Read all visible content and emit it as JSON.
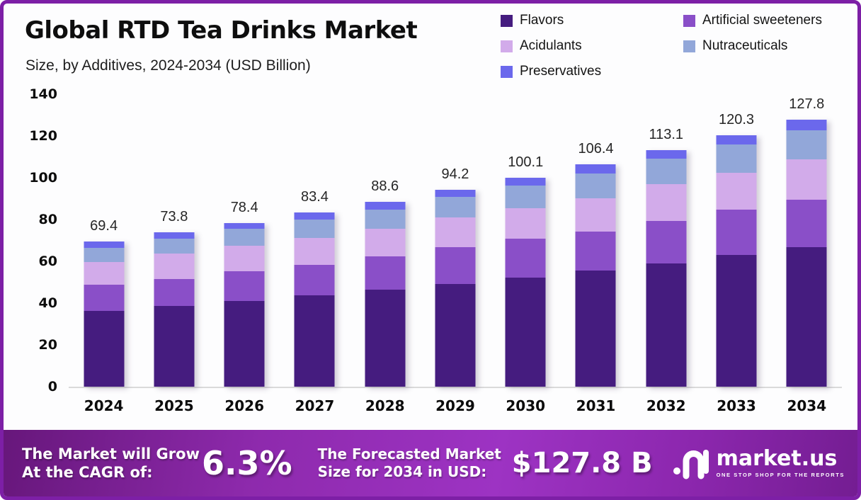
{
  "header": {
    "title": "Global RTD Tea Drinks Market",
    "subtitle": "Size, by Additives, 2024-2034 (USD Billion)"
  },
  "chart_data": {
    "type": "bar",
    "stacked": true,
    "title": "Global RTD Tea Drinks Market Size, by Additives, 2024-2034 (USD Billion)",
    "categories": [
      "2024",
      "2025",
      "2026",
      "2027",
      "2028",
      "2029",
      "2030",
      "2031",
      "2032",
      "2033",
      "2034"
    ],
    "series": [
      {
        "name": "Flavors",
        "color": "#451c7f",
        "values": [
          36.4,
          38.7,
          41.1,
          43.6,
          46.3,
          49.2,
          52.3,
          55.6,
          59.1,
          63.0,
          66.8
        ]
      },
      {
        "name": "Artificial sweeteners",
        "color": "#8a4fc8",
        "values": [
          12.3,
          12.8,
          14.2,
          14.8,
          16.0,
          17.6,
          18.5,
          18.8,
          20.2,
          21.9,
          22.6
        ]
      },
      {
        "name": "Acidulants",
        "color": "#d2abea",
        "values": [
          11.0,
          12.1,
          12.2,
          12.7,
          13.4,
          14.2,
          14.5,
          15.9,
          17.8,
          17.6,
          19.3
        ]
      },
      {
        "name": "Nutraceuticals",
        "color": "#92a7d9",
        "values": [
          6.9,
          7.3,
          8.0,
          8.8,
          9.1,
          9.8,
          11.1,
          11.6,
          12.0,
          13.6,
          14.2
        ]
      },
      {
        "name": "Preservatives",
        "color": "#6b68ec",
        "values": [
          2.8,
          2.9,
          2.9,
          3.5,
          3.8,
          3.4,
          3.7,
          4.5,
          4.0,
          4.2,
          4.9
        ]
      }
    ],
    "totals": [
      69.4,
      73.8,
      78.4,
      83.4,
      88.6,
      94.2,
      100.1,
      106.4,
      113.1,
      120.3,
      127.8
    ],
    "xlabel": "",
    "ylabel": "",
    "ylim": [
      0,
      140
    ],
    "yticks": [
      0,
      20,
      40,
      60,
      80,
      100,
      120,
      140
    ],
    "grid": false,
    "legend_position": "top-right"
  },
  "footer": {
    "cagr_line1": "The Market will Grow",
    "cagr_line2": "At the CAGR of:",
    "cagr_value": "6.3%",
    "forecast_line1": "The Forecasted Market",
    "forecast_line2": "Size for 2034 in USD:",
    "forecast_value": "$127.8 B",
    "brand_name": "market.us",
    "brand_tagline": "ONE STOP SHOP FOR THE REPORTS"
  },
  "colors": {
    "frame_border": "#7d1fa6",
    "band_gradient_dark": "#67177b",
    "band_gradient_bright": "#9d33c3",
    "axis_baseline": "#dadada"
  }
}
